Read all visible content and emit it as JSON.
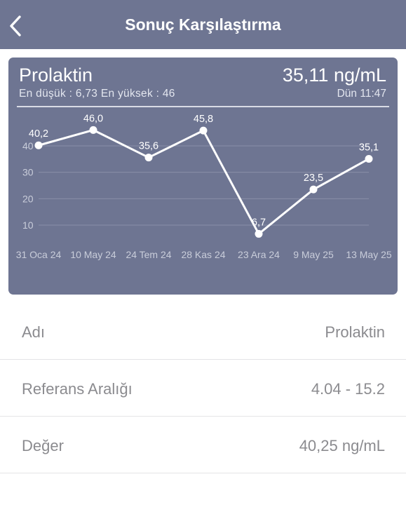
{
  "navbar": {
    "title": "Sonuç Karşılaştırma",
    "back_icon": "chevron-left-icon"
  },
  "summary": {
    "analyte": "Prolaktin",
    "latest_value": "35,11 ng/mL",
    "min_max_text": "En düşük : 6,73 En yüksek : 46",
    "latest_time": "Dün 11:47"
  },
  "chart_data": {
    "type": "line",
    "title": "",
    "xlabel": "",
    "ylabel": "",
    "categories": [
      "31 Oca 24",
      "10 May 24",
      "24 Tem 24",
      "28 Kas 24",
      "23 Ara 24",
      "9 May 25",
      "13 May 25"
    ],
    "category_positions": [
      0,
      1,
      2,
      3,
      4,
      5,
      6
    ],
    "x_tick_labels": [
      "31 Oca 24",
      "10 May 24",
      "24 Tem 24",
      "28 Kas 24",
      "23 Ara 24",
      "9 May 25",
      "13 May 25"
    ],
    "y_ticks": [
      10,
      20,
      30,
      40
    ],
    "ylim": [
      0,
      50
    ],
    "grid": true,
    "series": [
      {
        "values": [
          40.2,
          46.0,
          35.6,
          45.8,
          6.7,
          23.5,
          35.1
        ],
        "labels": [
          "40,2",
          "46,0",
          "35,6",
          "45,8",
          "6,7",
          "23,5",
          "35,1"
        ]
      }
    ]
  },
  "details": [
    {
      "label": "Adı",
      "value": "Prolaktin"
    },
    {
      "label": "Referans Aralığı",
      "value": "4.04 - 15.2"
    },
    {
      "label": "Değer",
      "value": "40,25 ng/mL"
    }
  ],
  "colors": {
    "navbar": "#6e7592",
    "card": "#6e7592",
    "line": "#ffffff",
    "grid": "#8a90a8",
    "muted_text": "#8b8b8f"
  }
}
